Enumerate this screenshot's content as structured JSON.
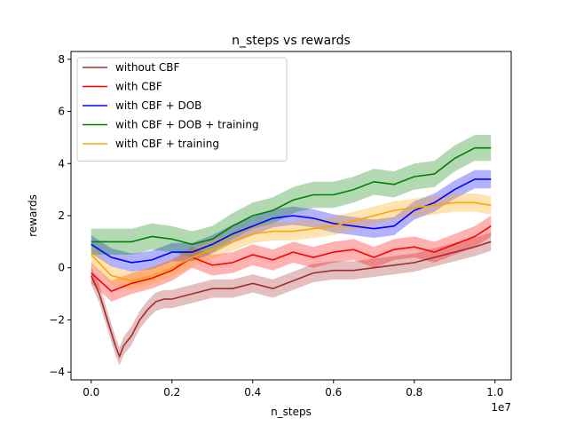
{
  "chart_data": {
    "type": "line",
    "title": "n_steps vs rewards",
    "xlabel": "n_steps",
    "ylabel": "rewards",
    "x_offset_label": "1e7",
    "xlim": [
      -0.05,
      1.04
    ],
    "ylim": [
      -4.3,
      8.3
    ],
    "xticks": [
      0.0,
      0.2,
      0.4,
      0.6,
      0.8,
      1.0
    ],
    "xtick_labels": [
      "0.0",
      "0.2",
      "0.4",
      "0.6",
      "0.8",
      "1.0"
    ],
    "yticks": [
      -4,
      -2,
      0,
      2,
      4,
      6,
      8
    ],
    "ytick_labels": [
      "−4",
      "−2",
      "0",
      "2",
      "4",
      "6",
      "8"
    ],
    "grid": false,
    "legend_position": "upper left",
    "series": [
      {
        "name": "without CBF",
        "color": "#a52a2a",
        "x": [
          0.0,
          0.02,
          0.04,
          0.06,
          0.07,
          0.08,
          0.1,
          0.12,
          0.14,
          0.16,
          0.18,
          0.2,
          0.25,
          0.3,
          0.35,
          0.4,
          0.45,
          0.5,
          0.55,
          0.6,
          0.65,
          0.7,
          0.75,
          0.8,
          0.85,
          0.9,
          0.95,
          0.99
        ],
        "y": [
          -0.3,
          -1.0,
          -2.0,
          -3.0,
          -3.4,
          -3.0,
          -2.6,
          -2.0,
          -1.6,
          -1.3,
          -1.2,
          -1.2,
          -1.0,
          -0.8,
          -0.8,
          -0.6,
          -0.8,
          -0.5,
          -0.2,
          -0.1,
          -0.1,
          0.0,
          0.1,
          0.2,
          0.4,
          0.6,
          0.8,
          1.0
        ],
        "band": 0.35
      },
      {
        "name": "with CBF",
        "color": "#ff0000",
        "x": [
          0.0,
          0.05,
          0.1,
          0.15,
          0.2,
          0.25,
          0.3,
          0.35,
          0.4,
          0.45,
          0.5,
          0.55,
          0.6,
          0.65,
          0.7,
          0.75,
          0.8,
          0.85,
          0.9,
          0.95,
          0.99
        ],
        "y": [
          -0.2,
          -0.9,
          -0.6,
          -0.4,
          -0.1,
          0.4,
          0.1,
          0.2,
          0.5,
          0.3,
          0.6,
          0.4,
          0.6,
          0.7,
          0.4,
          0.7,
          0.8,
          0.6,
          0.9,
          1.2,
          1.6
        ],
        "band": 0.4
      },
      {
        "name": "with CBF + DOB",
        "color": "#0000ff",
        "x": [
          0.0,
          0.05,
          0.1,
          0.15,
          0.2,
          0.25,
          0.3,
          0.35,
          0.4,
          0.45,
          0.5,
          0.55,
          0.6,
          0.65,
          0.7,
          0.75,
          0.8,
          0.85,
          0.9,
          0.95,
          0.99
        ],
        "y": [
          0.9,
          0.4,
          0.2,
          0.3,
          0.6,
          0.6,
          0.9,
          1.3,
          1.6,
          1.9,
          2.0,
          1.9,
          1.7,
          1.6,
          1.5,
          1.6,
          2.2,
          2.5,
          3.0,
          3.4,
          3.4
        ],
        "band": 0.35
      },
      {
        "name": "with CBF + DOB + training",
        "color": "#008000",
        "x": [
          0.0,
          0.05,
          0.1,
          0.15,
          0.2,
          0.25,
          0.3,
          0.35,
          0.4,
          0.45,
          0.5,
          0.55,
          0.6,
          0.65,
          0.7,
          0.75,
          0.8,
          0.85,
          0.9,
          0.95,
          0.99
        ],
        "y": [
          1.0,
          1.0,
          1.0,
          1.2,
          1.1,
          0.9,
          1.1,
          1.6,
          2.0,
          2.2,
          2.6,
          2.8,
          2.8,
          3.0,
          3.3,
          3.2,
          3.5,
          3.6,
          4.2,
          4.6,
          4.6
        ],
        "band": 0.5
      },
      {
        "name": "with CBF + training",
        "color": "#ffa500",
        "x": [
          0.0,
          0.05,
          0.1,
          0.15,
          0.2,
          0.25,
          0.3,
          0.35,
          0.4,
          0.45,
          0.5,
          0.55,
          0.6,
          0.65,
          0.7,
          0.75,
          0.8,
          0.85,
          0.9,
          0.95,
          0.99
        ],
        "y": [
          0.5,
          -0.3,
          -0.5,
          -0.3,
          0.0,
          0.4,
          0.7,
          1.0,
          1.3,
          1.4,
          1.4,
          1.5,
          1.6,
          1.8,
          2.0,
          2.2,
          2.3,
          2.4,
          2.5,
          2.5,
          2.4
        ],
        "band": 0.35
      }
    ]
  }
}
